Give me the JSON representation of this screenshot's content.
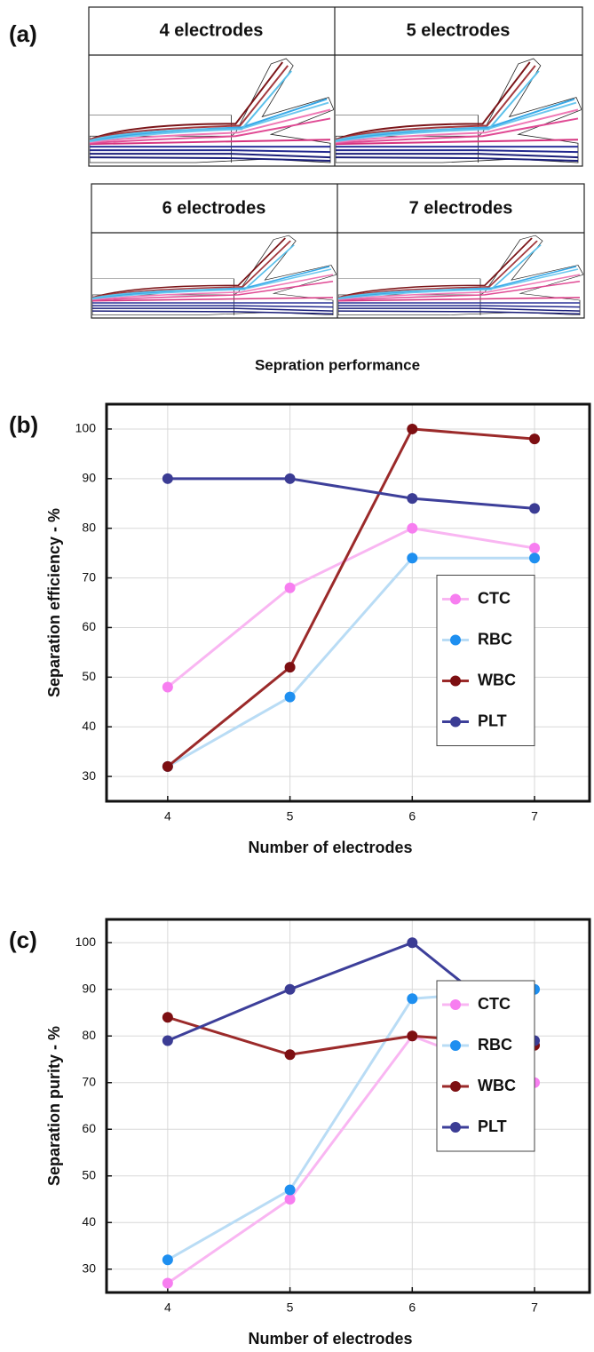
{
  "panel_a": {
    "label": "(a)",
    "panels": [
      "4 electrodes",
      "5 electrodes",
      "6 electrodes",
      "7 electrodes"
    ],
    "caption": "Sepration performance"
  },
  "chart_data": [
    {
      "type": "line",
      "label": "(b)",
      "x_label": "Number of electrodes",
      "y_label": "Separation efficiency - %",
      "x": [
        4,
        5,
        6,
        7
      ],
      "xlim": [
        3.5,
        7.45
      ],
      "xticks": [
        4,
        5,
        6,
        7
      ],
      "ylim": [
        25,
        105
      ],
      "yticks": [
        30,
        40,
        50,
        60,
        70,
        80,
        90,
        100
      ],
      "grid": true,
      "legend": "center right",
      "series": [
        {
          "name": "CTC",
          "color": "#f77ef0",
          "line_color": "#f9b6f2",
          "values": [
            48,
            68,
            80,
            76
          ]
        },
        {
          "name": "RBC",
          "color": "#1e8ff0",
          "line_color": "#b9dcf5",
          "values": [
            32,
            46,
            74,
            74
          ]
        },
        {
          "name": "WBC",
          "color": "#7d0f12",
          "line_color": "#9b2a2a",
          "values": [
            32,
            52,
            100,
            98
          ]
        },
        {
          "name": "PLT",
          "color": "#3b3c94",
          "line_color": "#3d3f9a",
          "values": [
            90,
            90,
            86,
            84
          ]
        }
      ]
    },
    {
      "type": "line",
      "label": "(c)",
      "x_label": "Number of electrodes",
      "y_label": "Separation purity - %",
      "x": [
        4,
        5,
        6,
        7
      ],
      "xlim": [
        3.5,
        7.45
      ],
      "xticks": [
        4,
        5,
        6,
        7
      ],
      "ylim": [
        25,
        105
      ],
      "yticks": [
        30,
        40,
        50,
        60,
        70,
        80,
        90,
        100
      ],
      "grid": true,
      "legend": "center right",
      "series": [
        {
          "name": "CTC",
          "color": "#f77ef0",
          "line_color": "#f9b6f2",
          "values": [
            27,
            45,
            80,
            70
          ]
        },
        {
          "name": "RBC",
          "color": "#1e8ff0",
          "line_color": "#b9dcf5",
          "values": [
            32,
            47,
            88,
            90
          ]
        },
        {
          "name": "WBC",
          "color": "#7d0f12",
          "line_color": "#9b2a2a",
          "values": [
            84,
            76,
            80,
            78
          ]
        },
        {
          "name": "PLT",
          "color": "#3b3c94",
          "line_color": "#3d3f9a",
          "values": [
            79,
            90,
            100,
            79
          ]
        }
      ]
    }
  ]
}
